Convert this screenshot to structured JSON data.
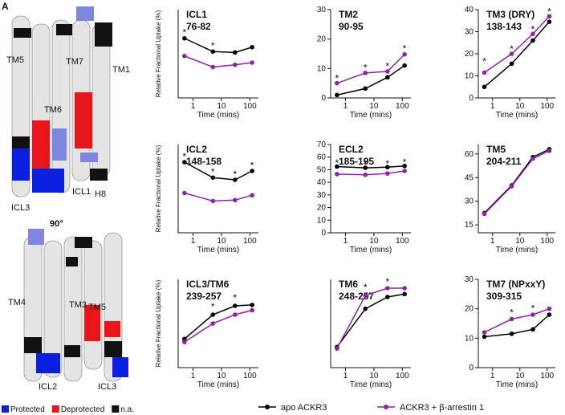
{
  "panel_label": "A",
  "structure": {
    "top_labels": [
      "TM5",
      "TM7",
      "TM1",
      "TM6",
      "ICL3",
      "ICL1",
      "H8"
    ],
    "rotation": "90°",
    "bottom_labels": [
      "TM4",
      "TM3",
      "TM5",
      "ICL2",
      "ICL3"
    ]
  },
  "key": [
    {
      "label": "Protected",
      "color": "#0a1fe0"
    },
    {
      "label": "Deprotected",
      "color": "#e8161b"
    },
    {
      "label": "n.a.",
      "color": "#111111"
    }
  ],
  "chart_data": [
    {
      "type": "line",
      "title": "ICL1",
      "subtitle": "76-82",
      "ylabel": "Relative Fractional Uptake (%)",
      "xlabel": "Time (mins)",
      "log_x": true,
      "x": [
        0.5,
        5,
        30,
        120
      ],
      "xlim": [
        0.3,
        200
      ],
      "xticks": [
        1,
        10,
        100
      ],
      "ylim": [
        20,
        40
      ],
      "series": [
        {
          "name": "apo ACKR3",
          "color": "#000000",
          "values": [
            33.5,
            30.5,
            30.3,
            31.5
          ]
        },
        {
          "name": "ACKR3 + β-arrestin 1",
          "color": "#8e22a8",
          "values": [
            29.5,
            27,
            27.5,
            28
          ]
        }
      ],
      "annotations": [
        {
          "text": "*",
          "x": 0.5,
          "y": 35
        },
        {
          "text": "*",
          "x": 5,
          "y": 32
        }
      ]
    },
    {
      "type": "line",
      "title": "TM2",
      "subtitle": "90-95",
      "xlabel": "Time (mins)",
      "log_x": true,
      "x": [
        0.5,
        5,
        30,
        120
      ],
      "xlim": [
        0.3,
        200
      ],
      "xticks": [
        1,
        10,
        100
      ],
      "ylim": [
        0,
        30
      ],
      "yticks": [
        0,
        10,
        20,
        30
      ],
      "series": [
        {
          "name": "apo ACKR3",
          "color": "#000000",
          "values": [
            1,
            3.2,
            7,
            11
          ]
        },
        {
          "name": "ACKR3 + β-arrestin 1",
          "color": "#8e22a8",
          "values": [
            5,
            8.5,
            9,
            14.8
          ]
        }
      ],
      "annotations": [
        {
          "text": "*",
          "x": 0.5,
          "y": 7
        },
        {
          "text": "*",
          "x": 5,
          "y": 10.5
        },
        {
          "text": "*",
          "x": 30,
          "y": 11
        },
        {
          "text": "*",
          "x": 120,
          "y": 17
        }
      ]
    },
    {
      "type": "line",
      "title": "TM3 (DRY)",
      "subtitle": "138-143",
      "xlabel": "Time (mins)",
      "log_x": true,
      "x": [
        0.5,
        5,
        30,
        120
      ],
      "xlim": [
        0.3,
        200
      ],
      "xticks": [
        1,
        10,
        100
      ],
      "ylim": [
        0,
        40
      ],
      "yticks": [
        0,
        10,
        20,
        30,
        40
      ],
      "series": [
        {
          "name": "apo ACKR3",
          "color": "#000000",
          "values": [
            5,
            15.5,
            26,
            34.5
          ]
        },
        {
          "name": "ACKR3 + β-arrestin 1",
          "color": "#8e22a8",
          "values": [
            11.5,
            20,
            29,
            37
          ]
        }
      ],
      "annotations": [
        {
          "text": "*",
          "x": 0.5,
          "y": 17
        },
        {
          "text": "*",
          "x": 5,
          "y": 22.5
        },
        {
          "text": "*",
          "x": 30,
          "y": 31.5
        },
        {
          "text": "*",
          "x": 120,
          "y": 39.5
        }
      ]
    },
    {
      "type": "line",
      "title": "ICL2",
      "subtitle": "148-158",
      "ylabel": "Relative Fractional Uptake (%)",
      "xlabel": "Time (mins)",
      "log_x": true,
      "x": [
        0.5,
        5,
        30,
        120
      ],
      "xlim": [
        0.3,
        200
      ],
      "xticks": [
        1,
        10,
        100
      ],
      "ylim": [
        25,
        45
      ],
      "series": [
        {
          "name": "apo ACKR3",
          "color": "#000000",
          "values": [
            41,
            37.5,
            37,
            39
          ]
        },
        {
          "name": "ACKR3 + β-arrestin 1",
          "color": "#8e22a8",
          "values": [
            34,
            32.2,
            32.4,
            33.5
          ]
        }
      ],
      "annotations": [
        {
          "text": "*",
          "x": 0.5,
          "y": 42.5
        },
        {
          "text": "*",
          "x": 5,
          "y": 39
        },
        {
          "text": "*",
          "x": 30,
          "y": 38.5
        },
        {
          "text": "*",
          "x": 120,
          "y": 40.5
        }
      ]
    },
    {
      "type": "line",
      "title": "ECL2",
      "subtitle": "185-195",
      "xlabel": "Time (mins)",
      "log_x": true,
      "x": [
        0.5,
        5,
        30,
        120
      ],
      "xlim": [
        0.3,
        200
      ],
      "xticks": [
        1,
        10,
        100
      ],
      "ylim": [
        0,
        70
      ],
      "yticks": [
        0,
        10,
        20,
        30,
        40,
        50,
        60,
        70
      ],
      "series": [
        {
          "name": "apo ACKR3",
          "color": "#000000",
          "values": [
            52.5,
            51.5,
            52,
            53
          ]
        },
        {
          "name": "ACKR3 + β-arrestin 1",
          "color": "#8e22a8",
          "values": [
            46.5,
            46,
            47,
            49
          ]
        }
      ],
      "annotations": [
        {
          "text": "*",
          "x": 0.5,
          "y": 56
        },
        {
          "text": "*",
          "x": 5,
          "y": 55
        },
        {
          "text": "*",
          "x": 30,
          "y": 55.5
        },
        {
          "text": "*",
          "x": 120,
          "y": 56.5
        }
      ]
    },
    {
      "type": "line",
      "title": "TM5",
      "subtitle": "204-211",
      "xlabel": "Time (mins)",
      "log_x": true,
      "x": [
        0.5,
        5,
        30,
        120
      ],
      "xlim": [
        0.3,
        200
      ],
      "xticks": [
        1,
        10,
        100
      ],
      "ylim": [
        10,
        66
      ],
      "yticks": [
        15,
        30,
        45,
        60
      ],
      "series": [
        {
          "name": "apo ACKR3",
          "color": "#000000",
          "values": [
            22.5,
            40,
            58,
            63
          ]
        },
        {
          "name": "ACKR3 + β-arrestin 1",
          "color": "#8e22a8",
          "values": [
            22,
            39.5,
            57,
            62
          ]
        }
      ],
      "annotations": []
    },
    {
      "type": "line",
      "title": "ICL3/TM6",
      "subtitle": "239-257",
      "ylabel": "Relative Fractional Uptake (%)",
      "xlabel": "Time (mins)",
      "log_x": true,
      "x": [
        0.5,
        5,
        30,
        120
      ],
      "xlim": [
        0.3,
        200
      ],
      "xticks": [
        1,
        10,
        100
      ],
      "ylim": [
        20,
        40
      ],
      "series": [
        {
          "name": "apo ACKR3",
          "color": "#000000",
          "values": [
            26.5,
            32,
            34,
            34.2
          ]
        },
        {
          "name": "ACKR3 + β-arrestin 1",
          "color": "#8e22a8",
          "values": [
            25.8,
            30,
            32,
            33
          ]
        }
      ],
      "annotations": [
        {
          "text": "*",
          "x": 5,
          "y": 34
        },
        {
          "text": "*",
          "x": 30,
          "y": 36
        }
      ]
    },
    {
      "type": "line",
      "title": "TM6",
      "subtitle": "248-257",
      "xlabel": "Time (mins)",
      "log_x": true,
      "x": [
        0.5,
        5,
        30,
        120
      ],
      "xlim": [
        0.3,
        200
      ],
      "xticks": [
        1,
        10,
        100
      ],
      "ylim": [
        30,
        60
      ],
      "series": [
        {
          "name": "apo ACKR3",
          "color": "#000000",
          "values": [
            37,
            50,
            54,
            55
          ]
        },
        {
          "name": "ACKR3 + β-arrestin 1",
          "color": "#8e22a8",
          "values": [
            36.5,
            54.5,
            57,
            57
          ]
        }
      ],
      "annotations": [
        {
          "text": "*",
          "x": 5,
          "y": 57.5
        },
        {
          "text": "*",
          "x": 30,
          "y": 59.5
        }
      ]
    },
    {
      "type": "line",
      "title": "TM7 (NPxxY)",
      "subtitle": "309-315",
      "xlabel": "Time (mins)",
      "log_x": true,
      "x": [
        0.5,
        5,
        30,
        120
      ],
      "xlim": [
        0.3,
        200
      ],
      "xticks": [
        1,
        10,
        100
      ],
      "ylim": [
        0,
        30
      ],
      "yticks": [
        0,
        10,
        20,
        30
      ],
      "series": [
        {
          "name": "apo ACKR3",
          "color": "#000000",
          "values": [
            10.5,
            11.5,
            13,
            18
          ]
        },
        {
          "name": "ACKR3 + β-arrestin 1",
          "color": "#8e22a8",
          "values": [
            12,
            16.5,
            18,
            20
          ]
        }
      ],
      "annotations": [
        {
          "text": "*",
          "x": 5,
          "y": 19
        },
        {
          "text": "*",
          "x": 30,
          "y": 20.5
        }
      ]
    }
  ]
}
